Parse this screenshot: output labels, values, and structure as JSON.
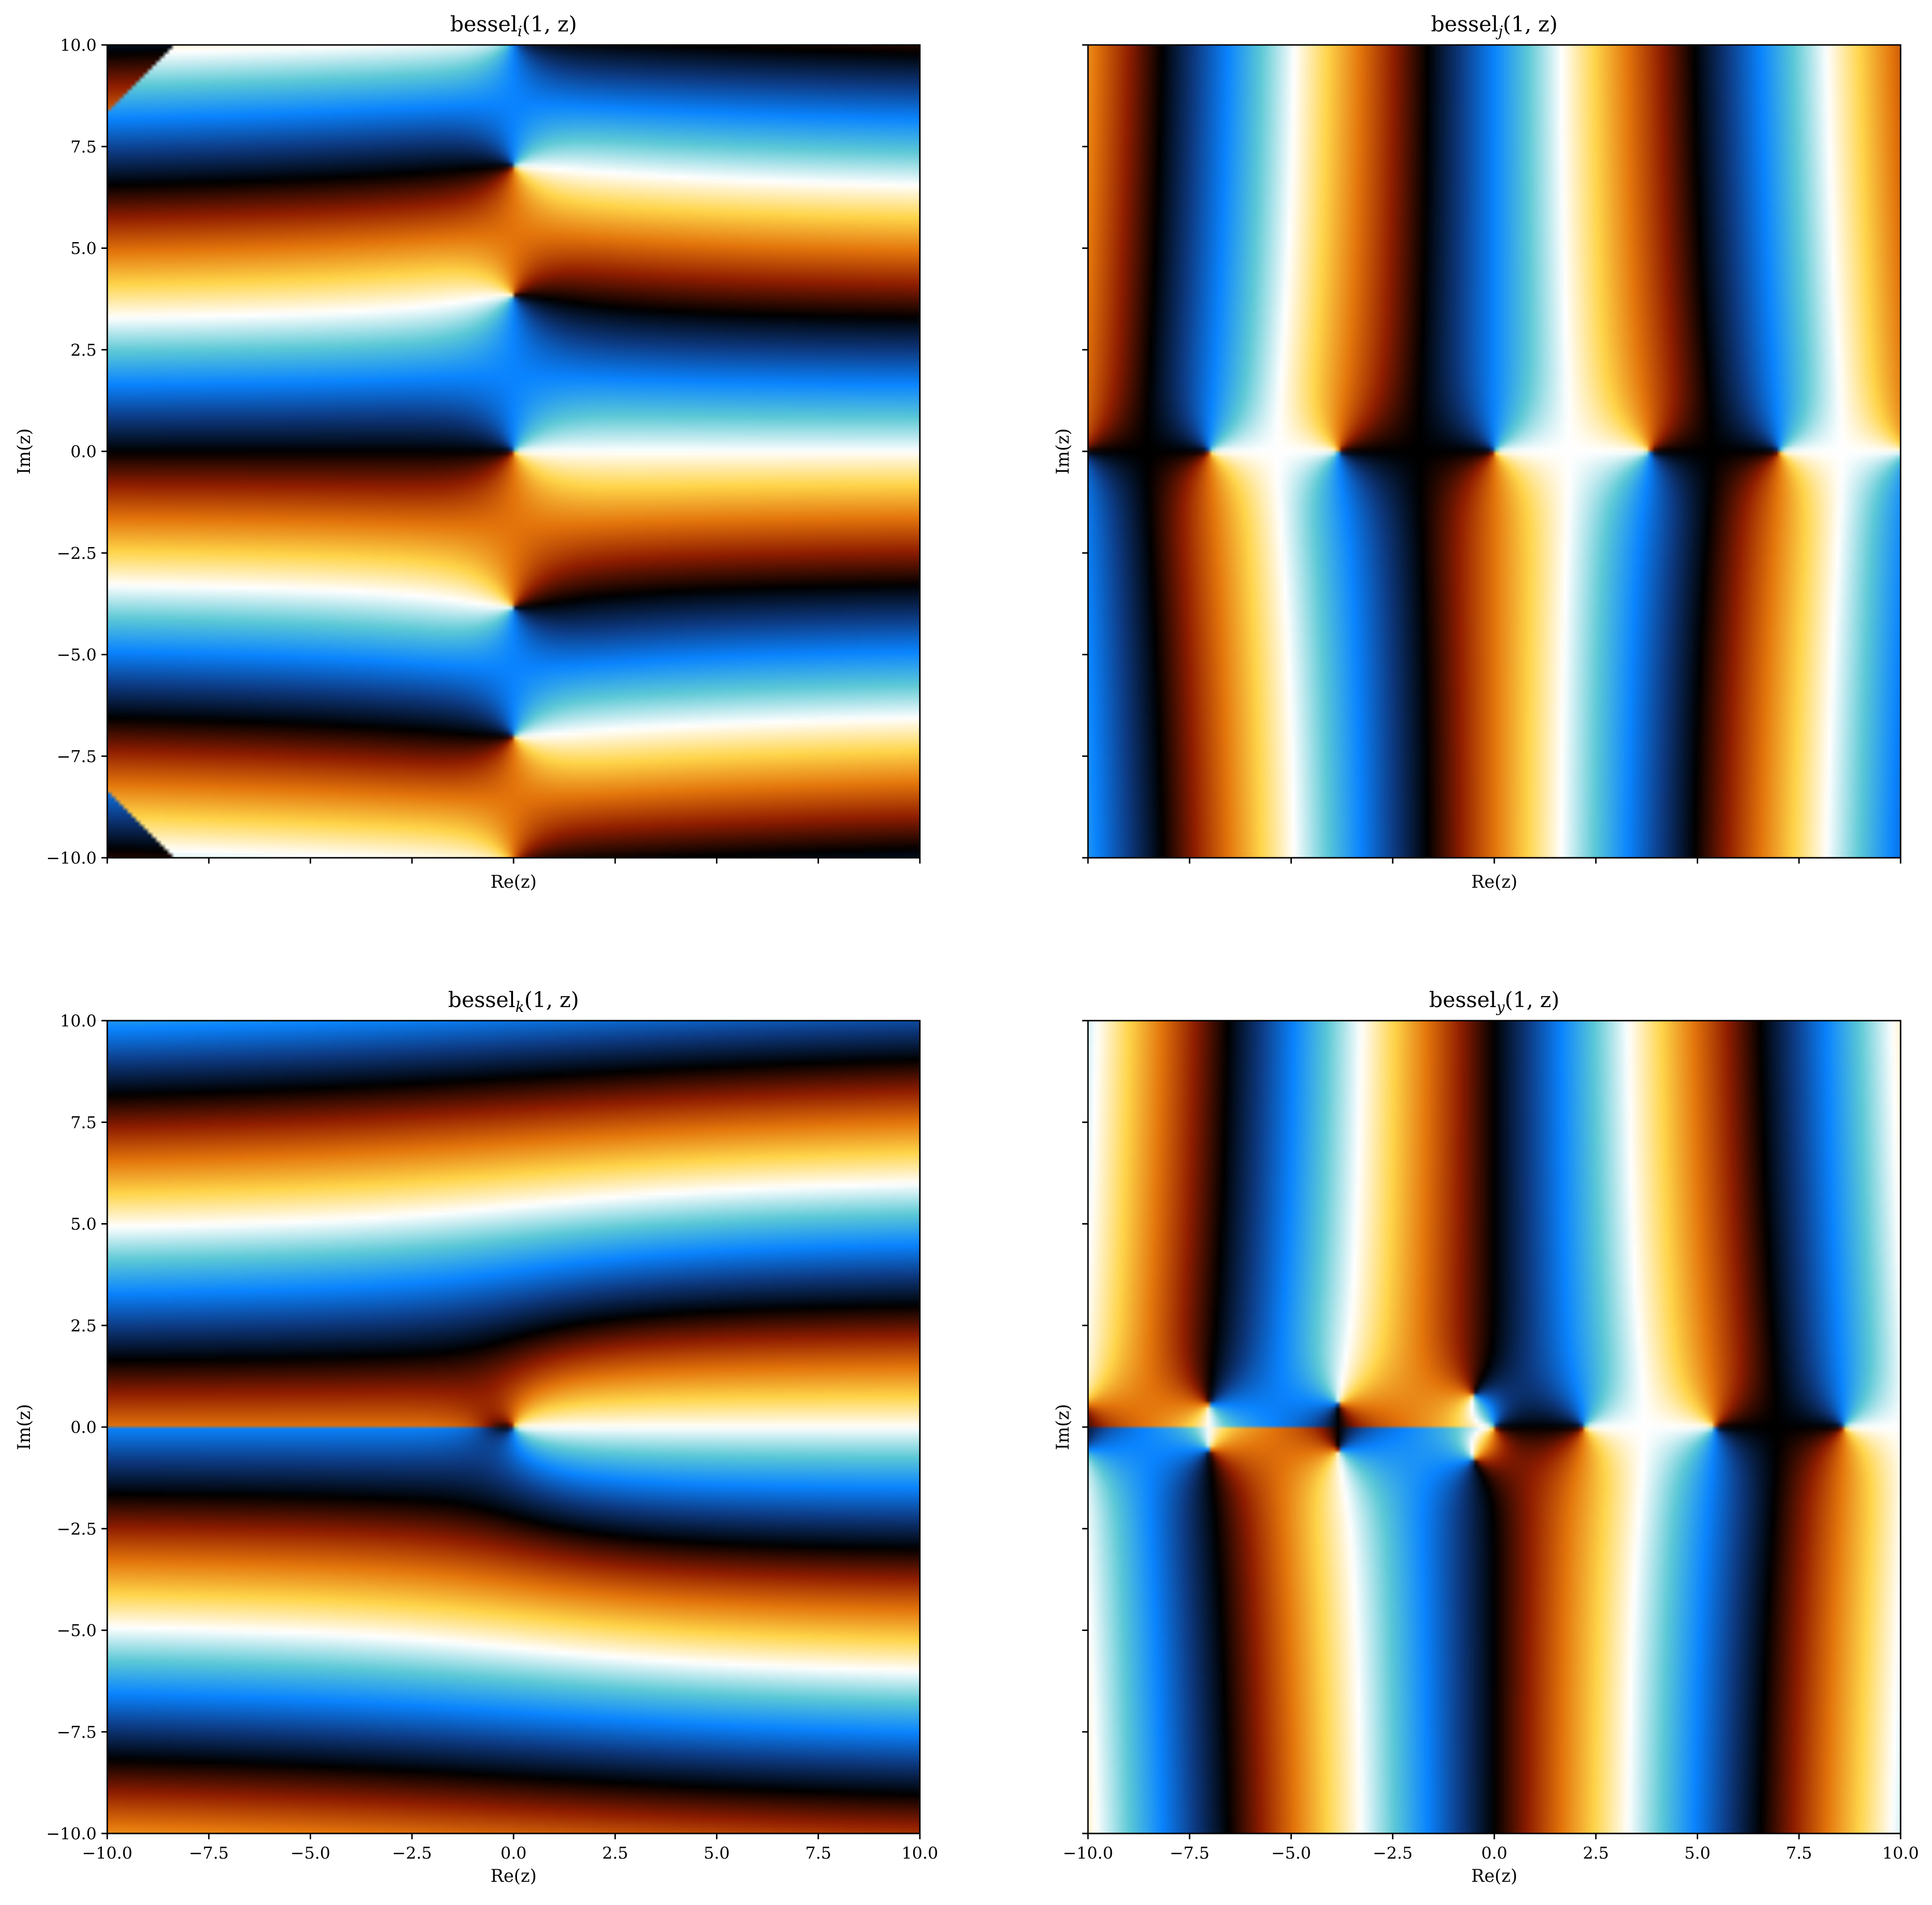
{
  "chart_data": [
    {
      "type": "heatmap",
      "function": "bessel_i",
      "title": "bessel",
      "title_subscript": "i",
      "title_args": "(1, z)",
      "xlabel": "Re(z)",
      "ylabel": "Im(z)",
      "xlim": [
        -10,
        10
      ],
      "ylim": [
        -10,
        10
      ],
      "xticks": [
        -10,
        -7.5,
        -5,
        -2.5,
        0,
        2.5,
        5,
        7.5,
        10
      ],
      "yticks": [
        -10,
        -7.5,
        -5,
        -2.5,
        0,
        2.5,
        5,
        7.5,
        10
      ],
      "xtick_labels": [],
      "ytick_labels": [
        "−10.0",
        "−7.5",
        "−5.0",
        "−2.5",
        "0.0",
        "2.5",
        "5.0",
        "7.5",
        "10.0"
      ],
      "colormap": "phase (complex argument)"
    },
    {
      "type": "heatmap",
      "function": "bessel_j",
      "title": "bessel",
      "title_subscript": "j",
      "title_args": "(1, z)",
      "xlabel": "Re(z)",
      "ylabel": "Im(z)",
      "xlim": [
        -10,
        10
      ],
      "ylim": [
        -10,
        10
      ],
      "xticks": [
        -10,
        -7.5,
        -5,
        -2.5,
        0,
        2.5,
        5,
        7.5,
        10
      ],
      "yticks": [
        -10,
        -7.5,
        -5,
        -2.5,
        0,
        2.5,
        5,
        7.5,
        10
      ],
      "xtick_labels": [],
      "ytick_labels": [],
      "colormap": "phase (complex argument)"
    },
    {
      "type": "heatmap",
      "function": "bessel_k",
      "title": "bessel",
      "title_subscript": "k",
      "title_args": "(1, z)",
      "xlabel": "Re(z)",
      "ylabel": "Im(z)",
      "xlim": [
        -10,
        10
      ],
      "ylim": [
        -10,
        10
      ],
      "xticks": [
        -10,
        -7.5,
        -5,
        -2.5,
        0,
        2.5,
        5,
        7.5,
        10
      ],
      "yticks": [
        -10,
        -7.5,
        -5,
        -2.5,
        0,
        2.5,
        5,
        7.5,
        10
      ],
      "xtick_labels": [
        "−10.0",
        "−7.5",
        "−5.0",
        "−2.5",
        "0.0",
        "2.5",
        "5.0",
        "7.5",
        "10.0"
      ],
      "ytick_labels": [
        "−10.0",
        "−7.5",
        "−5.0",
        "−2.5",
        "0.0",
        "2.5",
        "5.0",
        "7.5",
        "10.0"
      ],
      "colormap": "phase (complex argument)"
    },
    {
      "type": "heatmap",
      "function": "bessel_y",
      "title": "bessel",
      "title_subscript": "y",
      "title_args": "(1, z)",
      "xlabel": "Re(z)",
      "ylabel": "Im(z)",
      "xlim": [
        -10,
        10
      ],
      "ylim": [
        -10,
        10
      ],
      "xticks": [
        -10,
        -7.5,
        -5,
        -2.5,
        0,
        2.5,
        5,
        7.5,
        10
      ],
      "yticks": [
        -10,
        -7.5,
        -5,
        -2.5,
        0,
        2.5,
        5,
        7.5,
        10
      ],
      "xtick_labels": [
        "−10.0",
        "−7.5",
        "−5.0",
        "−2.5",
        "0.0",
        "2.5",
        "5.0",
        "7.5",
        "10.0"
      ],
      "ytick_labels": [],
      "colormap": "phase (complex argument)"
    }
  ],
  "colors": {
    "colormap_stops": [
      "#000000",
      "#8f1d00",
      "#e3740b",
      "#ffd54a",
      "#ffffff",
      "#5cc9d6",
      "#0a84ff",
      "#0d3a82",
      "#000000"
    ]
  }
}
